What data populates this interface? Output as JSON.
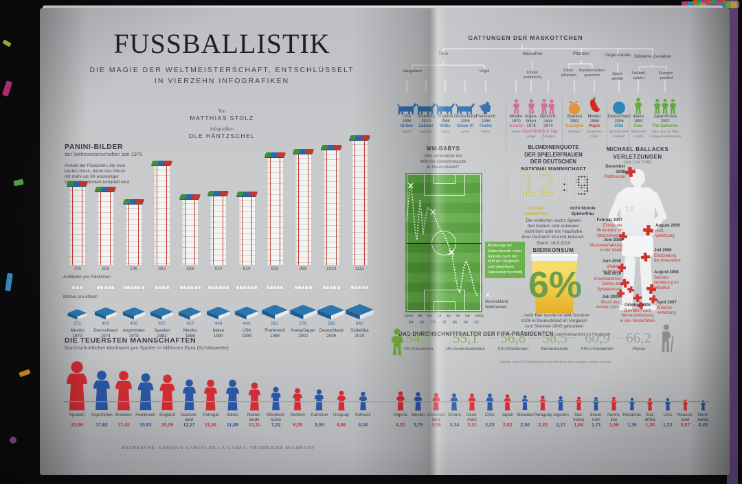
{
  "colors": {
    "fig_red": "#d42c35",
    "fig_blue": "#2a57a5",
    "panini_red": "#c23c30",
    "book_blue": "#2b77ad",
    "green": "#64ad3c",
    "pitch_green": "#55a03a",
    "yellow": "#d9c93e",
    "dark": "#3a3a3a",
    "pink": "#cf6d9d",
    "orange": "#e8933c",
    "chili": "#d42b1e",
    "ball": "#2a87b8",
    "mascot_blue": "#2f6db0",
    "age_green": "#79b33e",
    "age_gray": "#9b9e97",
    "injury_red": "#d0342c"
  },
  "book": {
    "left_page": {
      "title": "FUSSBALLISTIK",
      "subtitle_line1": "DIE MAGIE DER WELTMEISTERSCHAFT, ENTSCHLÜSSELT",
      "subtitle_line2": "IN VIERZEHN INFOGRAFIKEN",
      "byline_label": "Von",
      "byline_name": "MATTHIAS STOLZ",
      "infographics_label": "Infografiken",
      "infographics_name": "OLE HÄNTZSCHEL",
      "credit": "RECHERCHE: ENRIQUE GARCÍA DE LA GARZA; FRIEDERIKE MILBRADT"
    }
  },
  "panini": {
    "title": "PANINI-BILDER",
    "subtitle": "der Weltmeisterschaften seit 1970",
    "description": "Anzahl der Päckchen, die man\nkaufen muss, damit das Album\nmit mehr als 90-prozentiger\nWahrscheinlichkeit komplett wird",
    "stickers_label": "Aufkleber pro Päckchen",
    "motifs_label": "Motive pro Album"
  },
  "teams": {
    "title": "DIE TEUERSTEN MANNSCHAFTEN",
    "subtitle": "Durchschnittlicher Marktwert pro Spieler in Millionen Euro (Schätzwerte)"
  },
  "mascots": {
    "title": "GATTUNGEN DER MASKOTTCHEN",
    "tree": {
      "level1": [
        "Tiere",
        "Menschen",
        "Pflanzen",
        "Gegenstände",
        "Stilisierte Gestalten"
      ],
      "level2": [
        "Säugetiere",
        "Vögel",
        "Kinder\n(männlich)",
        "Zitrus-\npflanzen",
        "Nachtschatten-\ngewächs",
        "Sport-\ngeräte",
        "Fußball-\nspieler",
        "Energie-\npartikel"
      ]
    },
    "items": [
      {
        "country": "USA\n1994",
        "name": "Striker",
        "type": "Hund",
        "icon": "dog-icon",
        "color": "blue"
      },
      {
        "country": "Südafrika\n2010",
        "name": "Zakumi",
        "type": "Leopard",
        "icon": "leopard-icon",
        "color": "blue"
      },
      {
        "country": "England\n1966",
        "name": "Willie",
        "type": "Löwe",
        "icon": "lion-icon",
        "color": "blue"
      },
      {
        "country": "Deutschland\n2006",
        "name": "Goleo VI",
        "type": "Löwe",
        "icon": "lion-icon",
        "color": "blue"
      },
      {
        "country": "Frankreich\n1998",
        "name": "Footix",
        "type": "Hahn",
        "icon": "rooster-icon",
        "color": "blue"
      },
      {
        "country": "Mexiko\n1970",
        "name": "Juanito",
        "type": "Junge",
        "icon": "boy-icon",
        "color": "pink"
      },
      {
        "country": "Argen-\ntinien\n1978",
        "name": "Gauchito",
        "type": "Junge",
        "icon": "boy-icon",
        "color": "pink"
      },
      {
        "country": "Deutsch-\nland\n1974",
        "name": "Tip & Tap",
        "type": "2 Jungen",
        "icon": "two-boys-icon",
        "color": "pink"
      },
      {
        "country": "Spanien\n1982",
        "name": "Naranjito",
        "type": "Orange",
        "icon": "orange-icon",
        "color": "orange"
      },
      {
        "country": "Mexiko\n1986",
        "name": "Pique",
        "type": "Jalapeño-\nChili",
        "icon": "chili-icon",
        "color": "red"
      },
      {
        "country": "Deutschland\n2006",
        "name": "Pille",
        "type": "Sprechender\nFußball",
        "icon": "ball-icon",
        "color": "teal"
      },
      {
        "country": "Italien\n1990",
        "name": "Ciao",
        "type": "Stilisierte\nGrafik",
        "icon": "stylized-figure-icon",
        "color": "green"
      },
      {
        "country": "Japan/Korea\n2002",
        "name": "The Spheriks",
        "type": "(Ato, Kaz & Nik)\nComputeranimation",
        "icon": "trio-icon",
        "color": "green"
      }
    ]
  },
  "wm_babys": {
    "title": "WM-BABYS",
    "question": "Wie veränderte die\nWM die Geburtenquote\nin Deutschland?",
    "legend_box": "Änderung der Geburtenrate neun Monate nach der WM (im Vergleich zum jeweiligen Jahresdurchschnitt)",
    "legend_marker_glyph": "✕",
    "legend_marker_label": "Deutschland Weltmeister"
  },
  "blondes": {
    "title": "BLONDINENQUOTE\nDER SPIELERFRAUEN\nDER DEUTSCHEN\nNATIONALMANNSCHAFT",
    "score_left": "12",
    "score_sep": ":",
    "score_right": "9",
    "label_left": "blonde\nSpielerfrau",
    "label_right": "nicht blonde\nSpielerfrau",
    "note": "Die restlichen sechs Spieler\ndes Kaders sind entweder\nnicht liiert oder die Haarfarbe\nihrer Partnerin ist nicht bekannt.\nStand: 18.5.2010"
  },
  "beer": {
    "title": "BIERKONSUM",
    "value": "6%",
    "note": "... mehr Bier wurde im WM-Sommer\n2006 in Deutschland im Vergleich\nzum Sommer 2005 getrunken"
  },
  "ballack": {
    "title": "MICHAEL BALLACKS\nVERLETZUNGEN",
    "subtitle": "(seit Juni 2006)",
    "jersey_number": "13",
    "injuries": [
      {
        "date": "Dezember\n2008",
        "text": "Platzwunde"
      },
      {
        "date": "August 2006",
        "text": "Hüft-\nverletzung"
      },
      {
        "date": "Februar 2007",
        "text": "Einriss der\nMuskulatur im\nOberschenkel"
      },
      {
        "date": "Juni 2006",
        "text": "Muskelverhärtung\nin der Wade"
      },
      {
        "date": "Juli 2006",
        "text": "Entzündung\nder Kniesehne"
      },
      {
        "date": "Juni 2008",
        "text": "Waden-\nverletzung"
      },
      {
        "date": "Mai 2010",
        "text": "Innenbandriss/\nTeilriss der\nSyndesmose"
      },
      {
        "date": "August 2008",
        "text": "Sehnen-\nverletzung im\nMittelfuß"
      },
      {
        "date": "Juli 2009",
        "text": "Bruch des\nkleinen Zehs"
      },
      {
        "date": "Oktober 2008",
        "text": "Operation nach\nNervenverletzung\nin den Vorderfüßen"
      },
      {
        "date": "April 2007",
        "text": "Knöchel-\nverletzung"
      }
    ]
  },
  "ages": {
    "title_strong": "DAS DURCHSCHNITTSALTER DER FIFA-PRÄSIDENTEN",
    "title_rest": "bei Amtsantritt im Vergleich",
    "footnote": "Päpste und US-Präsidenten seit Beginn des vorigen Jahrhunderts"
  },
  "chart_data": [
    {
      "id": "panini",
      "type": "bar",
      "title": "PANINI-BILDER der Weltmeisterschaften seit 1970",
      "categories": [
        "Mexiko 1970",
        "Deutschland 1974",
        "Argentinien 1978",
        "Spanien 1982",
        "Mexiko 1986",
        "Italien 1990",
        "USA 1994",
        "Frankreich 1998",
        "Korea/Japan 2002",
        "Deutschland 2006",
        "Südafrika 2010"
      ],
      "values": [
        706,
        656,
        546,
        883,
        588,
        620,
        614,
        959,
        988,
        1026,
        1111
      ],
      "stickers_per_pack": [
        3,
        5,
        6,
        4,
        6,
        6,
        6,
        5,
        5,
        5,
        5
      ],
      "motifs_per_album": [
        271,
        400,
        400,
        427,
        427,
        448,
        444,
        561,
        576,
        596,
        640
      ],
      "edition_labels": [
        [
          "Mexiko",
          "1970"
        ],
        [
          "Deutschland",
          "1974"
        ],
        [
          "Argentinien",
          "1978"
        ],
        [
          "Spanien",
          "1982"
        ],
        [
          "Mexiko",
          "1986"
        ],
        [
          "Italien",
          "1990"
        ],
        [
          "USA",
          "1994"
        ],
        [
          "Frankreich",
          "1998"
        ],
        [
          "Korea/Japan",
          "2002"
        ],
        [
          "Deutschland",
          "2006"
        ],
        [
          "Südafrika",
          "2010"
        ]
      ]
    },
    {
      "id": "teams",
      "type": "pictogram",
      "title": "DIE TEUERSTEN MANNSCHAFTEN",
      "left": [
        {
          "label": "Spanien",
          "value": "23,56",
          "color": "red"
        },
        {
          "label": "Argentinien",
          "value": "17,62",
          "color": "blue"
        },
        {
          "label": "Brasilien",
          "value": "17,42",
          "color": "red"
        },
        {
          "label": "Frankreich",
          "value": "15,93",
          "color": "blue"
        },
        {
          "label": "England",
          "value": "15,29",
          "color": "red"
        },
        {
          "label": "Deutsch-\nland",
          "value": "12,27",
          "color": "blue"
        },
        {
          "label": "Portugal",
          "value": "11,92",
          "color": "red"
        },
        {
          "label": "Italien",
          "value": "11,88",
          "color": "blue"
        },
        {
          "label": "Nieder-\nlande",
          "value": "10,11",
          "color": "red"
        },
        {
          "label": "Elfenbein-\nküste",
          "value": "7,22",
          "color": "blue"
        },
        {
          "label": "Serbien",
          "value": "6,55",
          "color": "red"
        },
        {
          "label": "Kamerun",
          "value": "5,50",
          "color": "blue"
        },
        {
          "label": "Uruguay",
          "value": "4,86",
          "color": "red"
        },
        {
          "label": "Schweiz",
          "value": "4,34",
          "color": "blue"
        }
      ],
      "right": [
        {
          "label": "Nigeria",
          "value": "4,22",
          "color": "red"
        },
        {
          "label": "Mexiko",
          "value": "3,79",
          "color": "blue"
        },
        {
          "label": "Griechen-\nland",
          "value": "3,58",
          "color": "red"
        },
        {
          "label": "Ghana",
          "value": "3,34",
          "color": "blue"
        },
        {
          "label": "Däne-\nmark",
          "value": "3,31",
          "color": "red"
        },
        {
          "label": "Chile",
          "value": "3,23",
          "color": "blue"
        },
        {
          "label": "Japan",
          "value": "2,82",
          "color": "red"
        },
        {
          "label": "Slowakei",
          "value": "2,50",
          "color": "blue"
        },
        {
          "label": "Paraguay",
          "value": "2,22",
          "color": "red"
        },
        {
          "label": "Algerien",
          "value": "2,17",
          "color": "blue"
        },
        {
          "label": "Süd-\nkorea",
          "value": "1,94",
          "color": "red"
        },
        {
          "label": "Slowe-\nnien",
          "value": "1,71",
          "color": "blue"
        },
        {
          "label": "Austra-\nlien",
          "value": "1,66",
          "color": "red"
        },
        {
          "label": "Honduras",
          "value": "1,39",
          "color": "blue"
        },
        {
          "label": "Süd-\nafrika",
          "value": "1,30",
          "color": "red"
        },
        {
          "label": "USA",
          "value": "1,22",
          "color": "blue"
        },
        {
          "label": "Neusee-\nland",
          "value": "0,57",
          "color": "red"
        },
        {
          "label": "Nord-\nkorea",
          "value": "0,43",
          "color": "blue"
        }
      ]
    },
    {
      "id": "wm_babys",
      "type": "line",
      "x_ticks_row1": [
        "1950",
        "58",
        "66",
        "74",
        "82",
        "90",
        "98",
        "2006"
      ],
      "x_ticks_row2": [
        "54",
        "62",
        "70",
        "78",
        "86",
        "94",
        "02"
      ],
      "points": [
        [
          2,
          34
        ],
        [
          5,
          15
        ],
        [
          7,
          8
        ],
        [
          9,
          16
        ],
        [
          11,
          30
        ],
        [
          13,
          43
        ],
        [
          15,
          48
        ],
        [
          17,
          34
        ],
        [
          19,
          19
        ],
        [
          21,
          29
        ],
        [
          23,
          44
        ],
        [
          26,
          33
        ],
        [
          29,
          25
        ],
        [
          32,
          26
        ],
        [
          36,
          28
        ],
        [
          39,
          33
        ],
        [
          43,
          38
        ],
        [
          47,
          42
        ],
        [
          51,
          45
        ],
        [
          54,
          49
        ],
        [
          57,
          53
        ],
        [
          60,
          57
        ],
        [
          62,
          63
        ],
        [
          64,
          70
        ],
        [
          66,
          77
        ],
        [
          68,
          83
        ],
        [
          71,
          86
        ],
        [
          73,
          79
        ],
        [
          76,
          68
        ],
        [
          79,
          63
        ],
        [
          82,
          67
        ],
        [
          86,
          75
        ],
        [
          90,
          84
        ],
        [
          93,
          88
        ]
      ],
      "markers": [
        [
          7,
          9
        ],
        [
          36,
          28
        ],
        [
          60,
          57
        ]
      ]
    },
    {
      "id": "ages",
      "type": "dot-line",
      "entries": [
        {
          "value": "54,7",
          "label": "US-Präsidenten"
        },
        {
          "value": "55,1",
          "label": "UN-Generalsekretäre"
        },
        {
          "value": "56,8",
          "label": "IOC-Präsidenten"
        },
        {
          "value": "58,5",
          "label": "Bundeskanzler"
        },
        {
          "value": "60,9",
          "label": "FIFA-Präsidenten"
        },
        {
          "value": "66,2",
          "label": "Päpste"
        }
      ]
    },
    {
      "id": "blondes",
      "type": "ratio",
      "blonde": 12,
      "not_blonde": 9
    },
    {
      "id": "beer",
      "type": "single-value",
      "value": "6%"
    }
  ]
}
